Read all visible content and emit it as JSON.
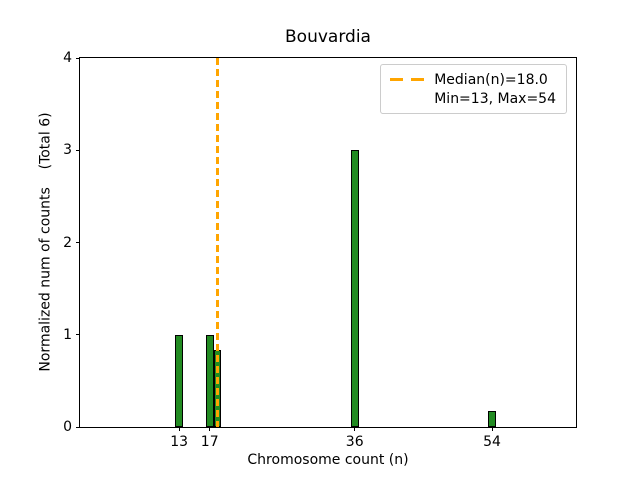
{
  "chart_data": {
    "type": "bar",
    "title": "Bouvardia",
    "xlabel": "Chromosome count (n)",
    "ylabel": "Normalized num of counts    (Total 6)",
    "total_counts": 6,
    "bars": [
      {
        "x": 13,
        "height": 1.0
      },
      {
        "x": 17,
        "height": 1.0
      },
      {
        "x": 18,
        "height": 0.83
      },
      {
        "x": 36,
        "height": 3.0
      },
      {
        "x": 54,
        "height": 0.17
      }
    ],
    "bar_width": 1,
    "xlim": [
      0,
      65
    ],
    "ylim": [
      0,
      4
    ],
    "xticks": [
      13,
      17,
      36,
      54
    ],
    "yticks": [
      0,
      1,
      2,
      3,
      4
    ],
    "median_line": {
      "x": 18,
      "value_label": "18.0",
      "style": "dashed"
    },
    "legend": {
      "position": "upper right",
      "entries": [
        {
          "label": "Median(n)=18.0",
          "sample": "orange-dashed-line"
        },
        {
          "label": "Min=13, Max=54",
          "sample": "none"
        }
      ]
    },
    "colors": {
      "bar_fill": "#228B22",
      "bar_edge": "#000000",
      "median": "#FFA500",
      "axis": "#000000",
      "legend_border": "#cccccc"
    },
    "grid": false
  }
}
